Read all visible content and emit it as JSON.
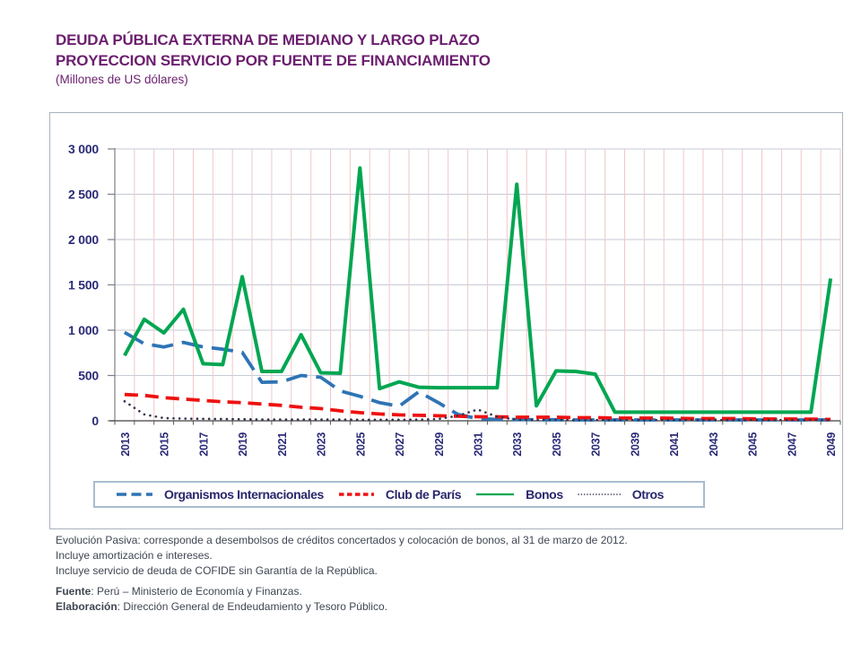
{
  "title": {
    "line1": "DEUDA PÚBLICA EXTERNA DE MEDIANO Y LARGO PLAZO",
    "line2": "PROYECCION SERVICIO POR FUENTE DE FINANCIAMIENTO",
    "line3": "(Millones de US dólares)"
  },
  "colors": {
    "title_text": "#6B1F6E",
    "axis_text": "#2B2B78",
    "legend_text": "#29276B",
    "footnote_text": "#3F4652",
    "grid_horizontal": "#C5CBD6",
    "grid_vertical": "#F1C7C7",
    "axis_line": "#7F7F7F",
    "baseline": "#404040",
    "organismos_blue": "#2E74B5",
    "club_red": "#EE1111",
    "bonos_green": "#00A651",
    "otros_dark": "#33334D"
  },
  "chart_data": {
    "type": "line",
    "title": "DEUDA PÚBLICA EXTERNA DE MEDIANO Y LARGO PLAZO — PROYECCION SERVICIO POR FUENTE DE FINANCIAMIENTO",
    "subtitle": "(Millones de US dólares)",
    "xlabel": "",
    "ylabel": "",
    "x_range": [
      2013,
      2049
    ],
    "ylim": [
      0,
      3000
    ],
    "grid": "horizontal gray lines every 500, vertical pale pink lines every year",
    "legend_position": "bottom",
    "x": [
      2013,
      2014,
      2015,
      2016,
      2017,
      2018,
      2019,
      2020,
      2021,
      2022,
      2023,
      2024,
      2025,
      2026,
      2027,
      2028,
      2029,
      2030,
      2031,
      2032,
      2033,
      2034,
      2035,
      2036,
      2037,
      2038,
      2039,
      2040,
      2041,
      2042,
      2043,
      2044,
      2045,
      2046,
      2047,
      2048,
      2049
    ],
    "x_tick_labels": [
      "2013",
      "2015",
      "2017",
      "2019",
      "2021",
      "2023",
      "2025",
      "2027",
      "2029",
      "2031",
      "2033",
      "2035",
      "2037",
      "2039",
      "2041",
      "2043",
      "2045",
      "2047",
      "2049"
    ],
    "y_ticks": [
      0,
      500,
      1000,
      1500,
      2000,
      2500,
      3000
    ],
    "y_tick_labels": [
      "0",
      "500",
      "1 000",
      "1 500",
      "2 000",
      "2 500",
      "3 000"
    ],
    "series": [
      {
        "name": "Organismos Internacionales",
        "color": "#2E74B5",
        "style": "dashed",
        "z": 1,
        "values": [
          975,
          850,
          815,
          865,
          815,
          790,
          755,
          425,
          430,
          500,
          480,
          330,
          270,
          200,
          160,
          320,
          200,
          70,
          25,
          15,
          15,
          12,
          12,
          10,
          10,
          10,
          10,
          10,
          10,
          10,
          10,
          10,
          10,
          10,
          10,
          10,
          10
        ]
      },
      {
        "name": "Club de París",
        "color": "#EE1111",
        "style": "dashed-short",
        "z": 2,
        "values": [
          290,
          280,
          255,
          240,
          225,
          210,
          200,
          185,
          170,
          150,
          135,
          110,
          90,
          75,
          65,
          60,
          55,
          50,
          45,
          45,
          40,
          40,
          40,
          35,
          35,
          30,
          30,
          30,
          28,
          25,
          25,
          25,
          22,
          20,
          20,
          18,
          15
        ]
      },
      {
        "name": "Bonos",
        "color": "#00A651",
        "style": "solid",
        "z": 4,
        "values": [
          720,
          1120,
          970,
          1230,
          630,
          620,
          1590,
          545,
          545,
          950,
          530,
          525,
          2790,
          355,
          430,
          370,
          365,
          365,
          365,
          365,
          2610,
          165,
          550,
          545,
          515,
          95,
          95,
          95,
          95,
          95,
          95,
          95,
          95,
          95,
          95,
          95,
          1570
        ]
      },
      {
        "name": "Otros",
        "color": "#33334D",
        "style": "dotted",
        "z": 3,
        "values": [
          215,
          70,
          30,
          25,
          22,
          20,
          18,
          15,
          15,
          15,
          15,
          14,
          12,
          12,
          12,
          14,
          20,
          55,
          125,
          45,
          12,
          10,
          10,
          8,
          8,
          8,
          8,
          8,
          8,
          8,
          8,
          8,
          8,
          8,
          8,
          8,
          8
        ]
      }
    ]
  },
  "footnotes": {
    "line1": "Evolución Pasiva: corresponde a desembolsos de créditos concertados y colocación de bonos, al 31 de marzo de 2012.",
    "line2": "Incluye amortización e intereses.",
    "line3": "Incluye servicio de deuda de COFIDE sin Garantía de la República."
  },
  "source": {
    "label": "Fuente",
    "text": ": Perú – Ministerio de Economía y Finanzas."
  },
  "elaboration": {
    "label": "Elaboración",
    "text": ":  Dirección General de Endeudamiento y Tesoro Público."
  }
}
